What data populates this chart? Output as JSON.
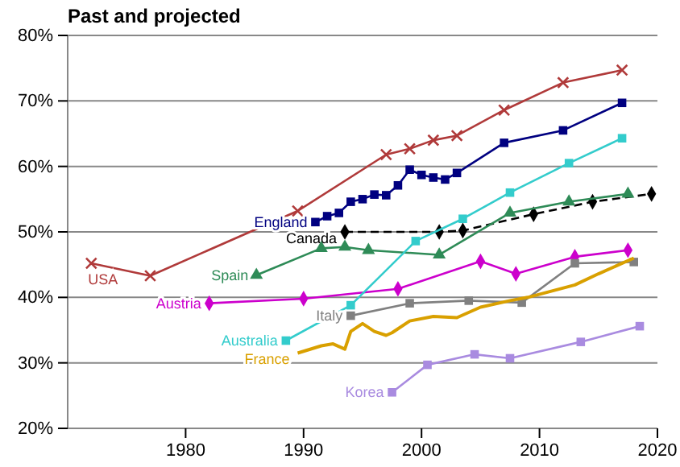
{
  "chart_data": {
    "type": "line",
    "title": "Past and projected",
    "xlim": [
      1970,
      2020
    ],
    "xticks": [
      1980,
      1990,
      2000,
      2010,
      2020
    ],
    "ylim": [
      20,
      80
    ],
    "yticks": [
      {
        "value": 20,
        "label": "20%"
      },
      {
        "value": 30,
        "label": "30%"
      },
      {
        "value": 40,
        "label": "40%"
      },
      {
        "value": 50,
        "label": "50%"
      },
      {
        "value": 60,
        "label": "60%"
      },
      {
        "value": 70,
        "label": "70%"
      },
      {
        "value": 80,
        "label": "80%"
      }
    ],
    "grid": "y",
    "series": [
      {
        "name": "USA",
        "color": "#b03a3a",
        "marker": "cross",
        "x": [
          1972,
          1977,
          1989.5,
          1997,
          1999,
          2001,
          2003,
          2007,
          2012,
          2017
        ],
        "values": [
          45.2,
          43.3,
          53.2,
          61.8,
          62.7,
          64,
          64.7,
          68.6,
          72.8,
          74.7
        ]
      },
      {
        "name": "England",
        "color": "#000080",
        "marker": "square",
        "x": [
          1991,
          1992,
          1993,
          1994,
          1995,
          1996,
          1997,
          1998,
          1999,
          2000,
          2001,
          2002,
          2003,
          2007,
          2012,
          2017
        ],
        "values": [
          51.5,
          52.4,
          52.9,
          54.6,
          55,
          55.7,
          55.6,
          57.1,
          59.5,
          58.7,
          58.3,
          58,
          59,
          63.6,
          65.5,
          69.7
        ]
      },
      {
        "name": "Canada",
        "color": "#000000",
        "marker": "diamond",
        "line_style": "dashed",
        "x": [
          1993.5,
          2001.5,
          2003.5,
          2009.5,
          2014.5,
          2019.5
        ],
        "values": [
          50,
          50,
          50.2,
          52.7,
          54.6,
          55.8
        ]
      },
      {
        "name": "Spain",
        "color": "#2e8b57",
        "marker": "triangle",
        "x": [
          1986,
          1991.5,
          1993.5,
          1995.5,
          2001.5,
          2007.5,
          2012.5,
          2017.5
        ],
        "values": [
          43.4,
          47.5,
          47.7,
          47.2,
          46.5,
          52.9,
          54.6,
          55.8
        ]
      },
      {
        "name": "Austria",
        "color": "#cc00cc",
        "marker": "diamond",
        "x": [
          1982,
          1990,
          1998,
          2005,
          2008,
          2013,
          2017.5
        ],
        "values": [
          39.1,
          39.8,
          41.3,
          45.5,
          43.6,
          46.2,
          47.2
        ]
      },
      {
        "name": "Australia",
        "color": "#33cccc",
        "marker": "square",
        "x": [
          1988.5,
          1994,
          1999.5,
          2003.5,
          2007.5,
          2012.5,
          2017
        ],
        "values": [
          33.4,
          38.8,
          48.6,
          52,
          56,
          60.5,
          64.3
        ]
      },
      {
        "name": "Italy",
        "color": "#808080",
        "marker": "square",
        "x": [
          1994,
          1999,
          2004,
          2008.5,
          2013,
          2018
        ],
        "values": [
          37.2,
          39.1,
          39.5,
          39.2,
          45.2,
          45.4
        ]
      },
      {
        "name": "France",
        "color": "#d9a000",
        "marker": "none",
        "x": [
          1989.5,
          1991.5,
          1992.5,
          1993.5,
          1994,
          1995,
          1996,
          1997,
          1997.5,
          1999,
          2001,
          2003,
          2005,
          2007.5,
          2009,
          2013,
          2015,
          2018
        ],
        "values": [
          31.5,
          32.6,
          32.9,
          32.1,
          34.8,
          36,
          34.8,
          34.2,
          34.6,
          36.4,
          37.1,
          36.9,
          38.5,
          39.5,
          40,
          41.9,
          43.6,
          46
        ]
      },
      {
        "name": "Korea",
        "color": "#a98be0",
        "marker": "square",
        "x": [
          1997.5,
          2000.5,
          2004.5,
          2007.5,
          2013.5,
          2018.5
        ],
        "values": [
          25.5,
          29.7,
          31.3,
          30.7,
          33.2,
          35.6
        ]
      }
    ]
  }
}
